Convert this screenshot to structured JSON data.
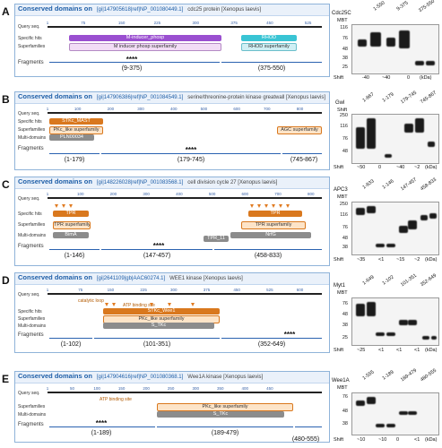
{
  "panels": [
    {
      "letter": "A",
      "title": "Conserved domains on",
      "title_ref": "[gi|147905618|ref|NP_001080449.1]",
      "title_desc": "cdc25 protein [Xenopus laevis]",
      "row_labels": [
        "Query seq.",
        "Specific hits",
        "Superfamilies"
      ],
      "ruler_ticks": [
        "1",
        "75",
        "150",
        "225",
        "300",
        "375",
        "450",
        "525",
        "550"
      ],
      "domains": [
        "M-inducer_phosp",
        "M inducer phosp superfamily",
        "RHOD",
        "RHOD superfamily"
      ],
      "fragments_label": "Fragments",
      "fragments": [
        "(9-375)",
        "(375-550)"
      ],
      "stars": "****",
      "blot": {
        "protein": "Cdc25C",
        "lanes": [
          "1-550",
          "9-375",
          "375-550"
        ],
        "mbt_label": "MBT",
        "mbt_marks": [
          "-",
          "+",
          "-",
          "+",
          "-",
          "+"
        ],
        "mw": [
          "116",
          "76",
          "48",
          "38",
          "25"
        ],
        "shift_label": "Shift",
        "shifts": [
          "-40",
          "~40",
          "0",
          "(kDa)"
        ]
      }
    },
    {
      "letter": "B",
      "title": "Conserved domains on",
      "title_ref": "[gi|147906386|ref|NP_001084549.1]",
      "title_desc": "serine/threonine-protein kinase greatwall [Xenopus laevis]",
      "row_labels": [
        "Query seq.",
        "Specific hits",
        "Superfamilies",
        "Multi-domains"
      ],
      "ruler_ticks": [
        "1",
        "100",
        "200",
        "300",
        "400",
        "500",
        "600",
        "700",
        "800",
        "867"
      ],
      "domains": [
        "STKc_MAST",
        "PKc_like superfamily",
        "PLN00034",
        "AGC superfamily"
      ],
      "fragments_label": "Fragments",
      "fragments": [
        "(1-179)",
        "(179-745)",
        "(745-867)"
      ],
      "stars": "****",
      "blot": {
        "protein": "Gwl",
        "lanes": [
          "1-867",
          "1-179",
          "179-745",
          "745-867"
        ],
        "mbt_label": "Shift",
        "mbt_marks": [
          "-",
          "+",
          "-",
          "+",
          "-",
          "+",
          "-",
          "+"
        ],
        "mw": [
          "250",
          "116",
          "76",
          "48"
        ],
        "shift_label": "Shift",
        "shifts": [
          "~50",
          "0",
          "~40",
          "~2",
          "(kDa)"
        ]
      }
    },
    {
      "letter": "C",
      "title": "Conserved domains on",
      "title_ref": "[gi|148226028|ref|NP_001083568.1]",
      "title_desc": "cell division cycle 27 [Xenopus laevis]",
      "row_labels": [
        "Query seq.",
        "Specific hits",
        "Superfamilies",
        "Multi-domains"
      ],
      "ruler_ticks": [
        "1",
        "100",
        "200",
        "300",
        "400",
        "500",
        "600",
        "700",
        "800",
        "833"
      ],
      "domains": [
        "TPR",
        "TPR superfamily",
        "BimA",
        "TPR_11",
        "NrfG"
      ],
      "fragments_label": "Fragments",
      "fragments": [
        "(1-146)",
        "(147-457)",
        "(458-833)"
      ],
      "stars": "****",
      "blot": {
        "protein": "APC3",
        "lanes": [
          "1-833",
          "1-146",
          "147-457",
          "458-833"
        ],
        "mbt_label": "MBT",
        "mbt_marks": [
          "-",
          "+",
          "-",
          "+",
          "-",
          "+",
          "-",
          "+"
        ],
        "mw": [
          "250",
          "116",
          "76",
          "48",
          "38"
        ],
        "shift_label": "Shift",
        "shifts": [
          "~35",
          "<1",
          "~15",
          "~2",
          "(kDa)"
        ]
      }
    },
    {
      "letter": "D",
      "title": "Conserved domains on",
      "title_ref": "[gi|2641109|gb|AAC60274.1]",
      "title_desc": "WEE1 kinase [Xenopus laevis]",
      "row_labels": [
        "Query seq.",
        "Specific hits",
        "Superfamilies",
        "Multi-domains"
      ],
      "ruler_ticks": [
        "1",
        "75",
        "150",
        "225",
        "300",
        "375",
        "450",
        "525",
        "600",
        "649"
      ],
      "domains": [
        "catalytic loop",
        "ATP binding site",
        "STKc_Wee1",
        "PKc_like superfamily",
        "S_TKc"
      ],
      "fragments_label": "Fragments",
      "fragments": [
        "(1-102)",
        "(101-351)",
        "(352-649)"
      ],
      "stars": "****",
      "blot": {
        "protein": "Myt1",
        "lanes": [
          "1-649",
          "1-102",
          "101-351",
          "352-649"
        ],
        "mbt_label": "MBT",
        "mbt_marks": [
          "-",
          "+",
          "-",
          "+",
          "-",
          "+",
          "-",
          "+"
        ],
        "mw": [
          "76",
          "48",
          "38",
          "25"
        ],
        "shift_label": "Shift",
        "shifts": [
          "~25",
          "<1",
          "<1",
          "<1",
          "(kDa)"
        ]
      }
    },
    {
      "letter": "E",
      "title": "Conserved domains on",
      "title_ref": "[gi|147904616|ref|NP_001080368.1]",
      "title_desc": "Wee1A kinase [Xenopus laevis]",
      "row_labels": [
        "Query seq.",
        "Superfamilies",
        "Multi-domains"
      ],
      "ruler_ticks": [
        "1",
        "50",
        "100",
        "150",
        "200",
        "250",
        "300",
        "350",
        "400",
        "450",
        "555"
      ],
      "domains": [
        "ATP binding site",
        "PKc_like superfamily",
        "S_TKc"
      ],
      "fragments_label": "Fragments",
      "fragments": [
        "(1-189)",
        "(189-479)",
        "(480-555)"
      ],
      "stars": "****",
      "blot": {
        "protein": "Wee1A",
        "lanes": [
          "1-555",
          "1-189",
          "189-479",
          "480-555"
        ],
        "mbt_label": "MBT",
        "mbt_marks": [
          "-",
          "+",
          "-",
          "+",
          "-",
          "+",
          "-",
          "+"
        ],
        "mw": [
          "76",
          "48",
          "38"
        ],
        "shift_label": "Shift",
        "shifts": [
          "~10",
          "~10",
          "0",
          "<1",
          "(kDa)"
        ]
      }
    }
  ]
}
